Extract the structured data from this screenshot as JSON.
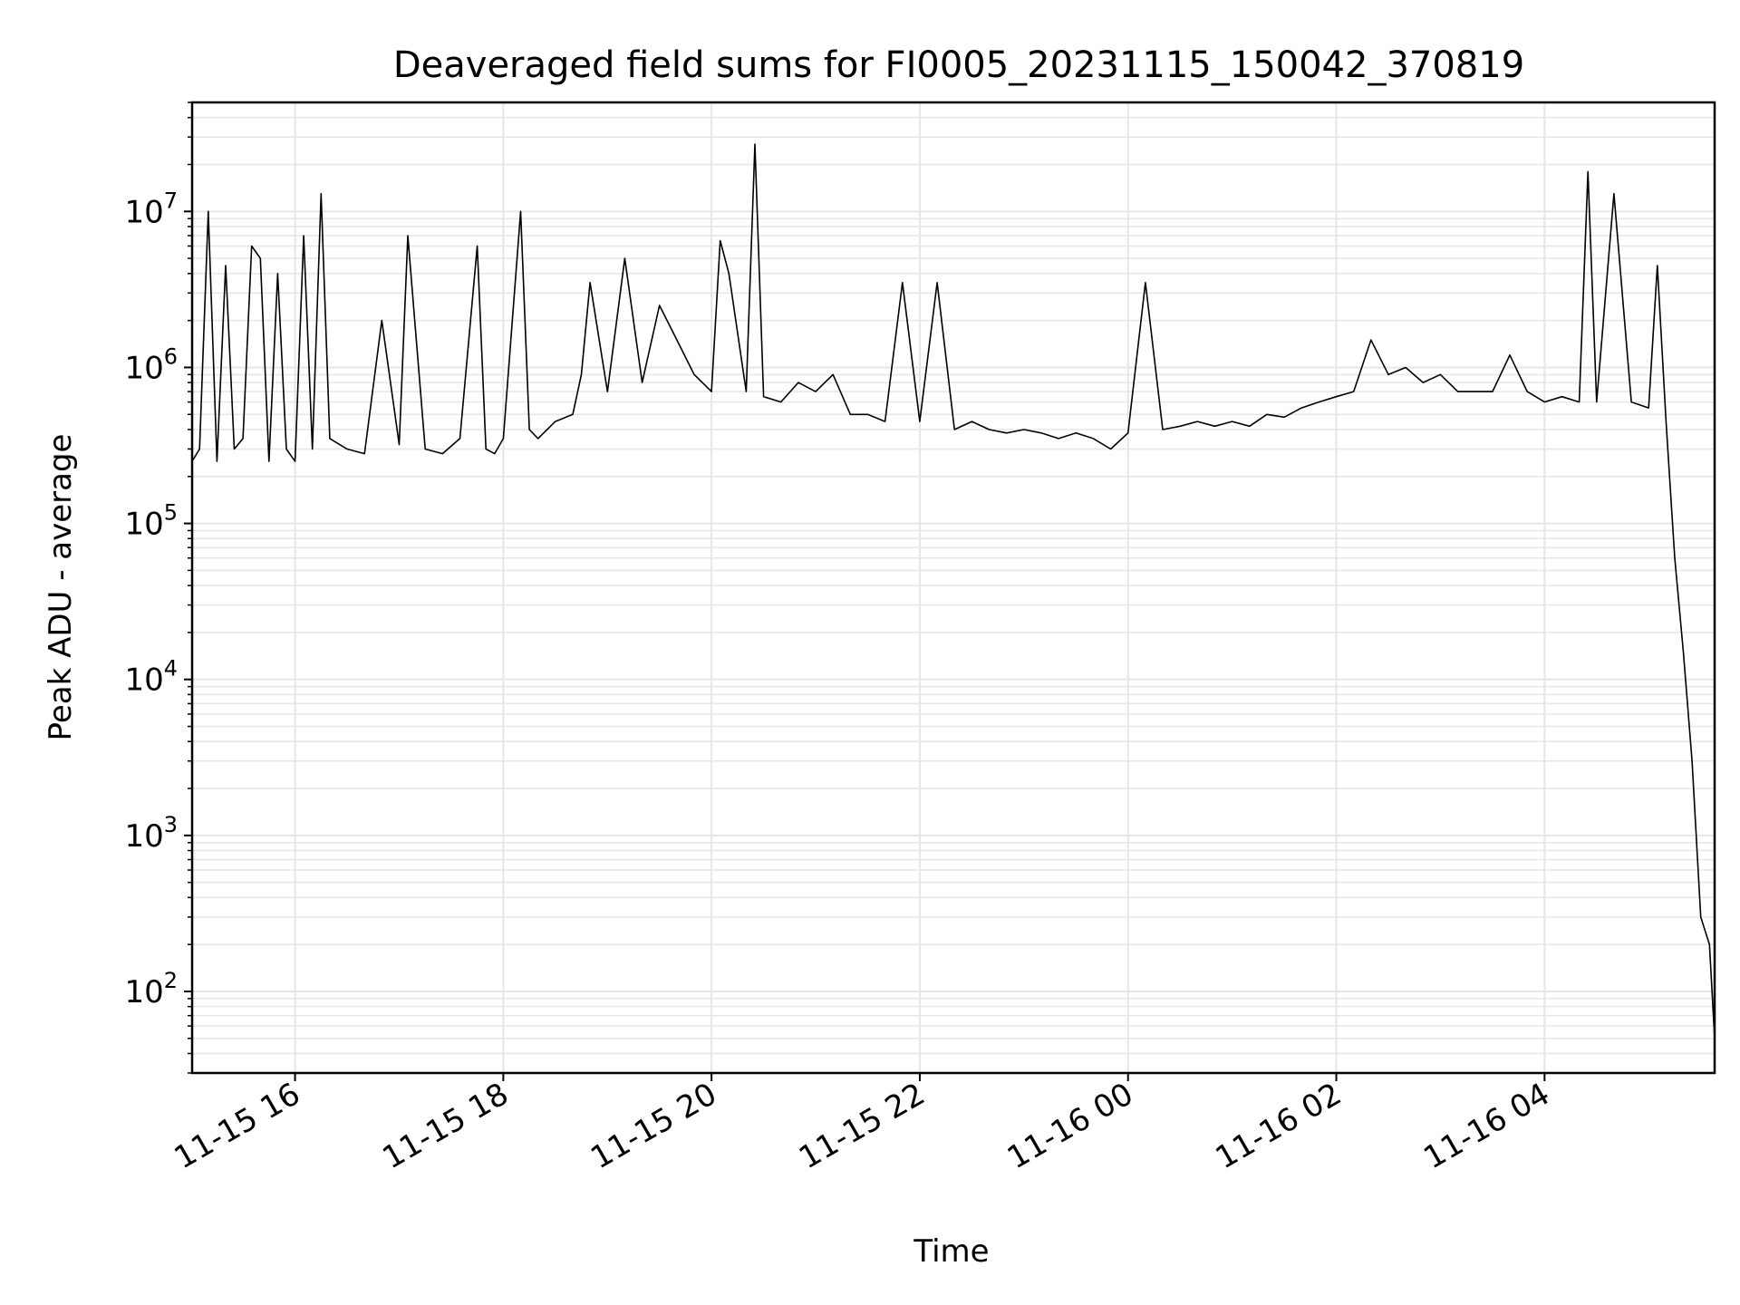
{
  "chart_data": {
    "type": "line",
    "title": "Deaveraged field sums for FI0005_20231115_150042_370819",
    "xlabel": "Time",
    "ylabel": "Peak ADU - average",
    "yscale": "log",
    "ylim": [
      30,
      50000000
    ],
    "xlim": [
      "2023-11-15T15:00:42",
      "2023-11-16T05:38:00"
    ],
    "grid": true,
    "line_color": "#000000",
    "grid_color": "#e6e6e6",
    "x_ticks": [
      {
        "value": "2023-11-15T16:00:00",
        "label": "11-15 16"
      },
      {
        "value": "2023-11-15T18:00:00",
        "label": "11-15 18"
      },
      {
        "value": "2023-11-15T20:00:00",
        "label": "11-15 20"
      },
      {
        "value": "2023-11-15T22:00:00",
        "label": "11-15 22"
      },
      {
        "value": "2023-11-16T00:00:00",
        "label": "11-16 00"
      },
      {
        "value": "2023-11-16T02:00:00",
        "label": "11-16 02"
      },
      {
        "value": "2023-11-16T04:00:00",
        "label": "11-16 04"
      }
    ],
    "y_ticks": [
      {
        "value": 100,
        "base": "10",
        "exp": "2"
      },
      {
        "value": 1000,
        "base": "10",
        "exp": "3"
      },
      {
        "value": 10000,
        "base": "10",
        "exp": "4"
      },
      {
        "value": 100000,
        "base": "10",
        "exp": "5"
      },
      {
        "value": 1000000,
        "base": "10",
        "exp": "6"
      },
      {
        "value": 10000000,
        "base": "10",
        "exp": "7"
      }
    ],
    "series": [
      {
        "x": [
          "2023-11-15T15:00:42",
          "2023-11-15T15:05:00",
          "2023-11-15T15:10:00",
          "2023-11-15T15:15:00",
          "2023-11-15T15:20:00",
          "2023-11-15T15:25:00",
          "2023-11-15T15:30:00",
          "2023-11-15T15:35:00",
          "2023-11-15T15:40:00",
          "2023-11-15T15:45:00",
          "2023-11-15T15:50:00",
          "2023-11-15T15:55:00",
          "2023-11-15T16:00:00",
          "2023-11-15T16:05:00",
          "2023-11-15T16:10:00",
          "2023-11-15T16:15:00",
          "2023-11-15T16:20:00",
          "2023-11-15T16:30:00",
          "2023-11-15T16:40:00",
          "2023-11-15T16:50:00",
          "2023-11-15T17:00:00",
          "2023-11-15T17:05:00",
          "2023-11-15T17:15:00",
          "2023-11-15T17:25:00",
          "2023-11-15T17:35:00",
          "2023-11-15T17:45:00",
          "2023-11-15T17:50:00",
          "2023-11-15T17:55:00",
          "2023-11-15T18:00:00",
          "2023-11-15T18:10:00",
          "2023-11-15T18:15:00",
          "2023-11-15T18:20:00",
          "2023-11-15T18:30:00",
          "2023-11-15T18:40:00",
          "2023-11-15T18:45:00",
          "2023-11-15T18:50:00",
          "2023-11-15T19:00:00",
          "2023-11-15T19:10:00",
          "2023-11-15T19:20:00",
          "2023-11-15T19:30:00",
          "2023-11-15T19:40:00",
          "2023-11-15T19:50:00",
          "2023-11-15T20:00:00",
          "2023-11-15T20:05:00",
          "2023-11-15T20:10:00",
          "2023-11-15T20:20:00",
          "2023-11-15T20:25:00",
          "2023-11-15T20:30:00",
          "2023-11-15T20:40:00",
          "2023-11-15T20:50:00",
          "2023-11-15T21:00:00",
          "2023-11-15T21:10:00",
          "2023-11-15T21:20:00",
          "2023-11-15T21:30:00",
          "2023-11-15T21:40:00",
          "2023-11-15T21:50:00",
          "2023-11-15T22:00:00",
          "2023-11-15T22:10:00",
          "2023-11-15T22:20:00",
          "2023-11-15T22:30:00",
          "2023-11-15T22:40:00",
          "2023-11-15T22:50:00",
          "2023-11-15T23:00:00",
          "2023-11-15T23:10:00",
          "2023-11-15T23:20:00",
          "2023-11-15T23:30:00",
          "2023-11-15T23:40:00",
          "2023-11-15T23:50:00",
          "2023-11-16T00:00:00",
          "2023-11-16T00:10:00",
          "2023-11-16T00:20:00",
          "2023-11-16T00:30:00",
          "2023-11-16T00:40:00",
          "2023-11-16T00:50:00",
          "2023-11-16T01:00:00",
          "2023-11-16T01:10:00",
          "2023-11-16T01:20:00",
          "2023-11-16T01:30:00",
          "2023-11-16T01:40:00",
          "2023-11-16T01:50:00",
          "2023-11-16T02:00:00",
          "2023-11-16T02:10:00",
          "2023-11-16T02:20:00",
          "2023-11-16T02:30:00",
          "2023-11-16T02:40:00",
          "2023-11-16T02:50:00",
          "2023-11-16T03:00:00",
          "2023-11-16T03:10:00",
          "2023-11-16T03:20:00",
          "2023-11-16T03:30:00",
          "2023-11-16T03:40:00",
          "2023-11-16T03:50:00",
          "2023-11-16T04:00:00",
          "2023-11-16T04:10:00",
          "2023-11-16T04:20:00",
          "2023-11-16T04:25:00",
          "2023-11-16T04:30:00",
          "2023-11-16T04:40:00",
          "2023-11-16T04:50:00",
          "2023-11-16T05:00:00",
          "2023-11-16T05:05:00",
          "2023-11-16T05:10:00",
          "2023-11-16T05:15:00",
          "2023-11-16T05:20:00",
          "2023-11-16T05:25:00",
          "2023-11-16T05:30:00",
          "2023-11-16T05:35:00",
          "2023-11-16T05:38:00"
        ],
        "y": [
          250000,
          300000,
          10000000,
          250000,
          4500000,
          300000,
          350000,
          6000000,
          5000000,
          250000,
          4000000,
          300000,
          250000,
          7000000,
          300000,
          13000000,
          350000,
          300000,
          280000,
          2000000,
          320000,
          7000000,
          300000,
          280000,
          350000,
          6000000,
          300000,
          280000,
          350000,
          10000000,
          400000,
          350000,
          450000,
          500000,
          900000,
          3500000,
          700000,
          5000000,
          800000,
          2500000,
          1500000,
          900000,
          700000,
          6500000,
          4000000,
          700000,
          27000000,
          650000,
          600000,
          800000,
          700000,
          900000,
          500000,
          500000,
          450000,
          3500000,
          450000,
          3500000,
          400000,
          450000,
          400000,
          380000,
          400000,
          380000,
          350000,
          380000,
          350000,
          300000,
          380000,
          3500000,
          400000,
          420000,
          450000,
          420000,
          450000,
          420000,
          500000,
          480000,
          550000,
          600000,
          650000,
          700000,
          1500000,
          900000,
          1000000,
          800000,
          900000,
          700000,
          700000,
          700000,
          1200000,
          700000,
          600000,
          650000,
          600000,
          18000000,
          600000,
          13000000,
          600000,
          550000,
          4500000,
          450000,
          60000,
          15000,
          3000,
          300,
          200,
          50
        ]
      }
    ]
  }
}
